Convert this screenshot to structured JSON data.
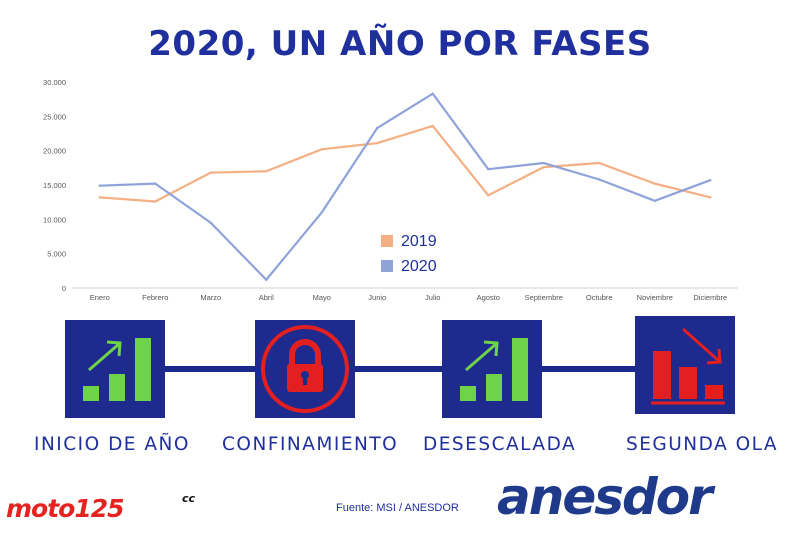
{
  "title": "2020, UN AÑO POR FASES",
  "chart_data": {
    "type": "line",
    "categories": [
      "Enero",
      "Febrero",
      "Marzo",
      "Abril",
      "Mayo",
      "Junio",
      "Julio",
      "Agosto",
      "Septiembre",
      "Octubre",
      "Noviembre",
      "Diciembre"
    ],
    "series": [
      {
        "name": "2019",
        "color": "#f4b084",
        "values": [
          13200,
          12600,
          16800,
          17000,
          20200,
          21100,
          23600,
          13500,
          17600,
          18200,
          15200,
          13200
        ]
      },
      {
        "name": "2020",
        "color": "#8fa3d9",
        "values": [
          14900,
          15200,
          9500,
          1200,
          11000,
          23300,
          28300,
          17300,
          18200,
          15800,
          12700,
          15700
        ]
      }
    ],
    "ylim": [
      0,
      30000
    ],
    "yticks": [
      "0",
      "5.000",
      "10.000",
      "15.000",
      "20.000",
      "25.000",
      "30.000"
    ],
    "grid": false,
    "legend_position": "center"
  },
  "phases": [
    {
      "label": "INICIO DE AÑO",
      "icon": "growth-bars-icon",
      "color": "#6fd34a"
    },
    {
      "label": "CONFINAMIENTO",
      "icon": "padlock-icon",
      "color": "#e41f1f"
    },
    {
      "label": "DESESCALADA",
      "icon": "growth-bars-icon",
      "color": "#6fd34a"
    },
    {
      "label": "SEGUNDA OLA",
      "icon": "declining-bars-icon",
      "color": "#e41f1f"
    }
  ],
  "source": "Fuente: MSI / ANESDOR",
  "logos": {
    "moto": "moto125",
    "moto_suffix": "cc",
    "anesdor": "anesdor"
  }
}
